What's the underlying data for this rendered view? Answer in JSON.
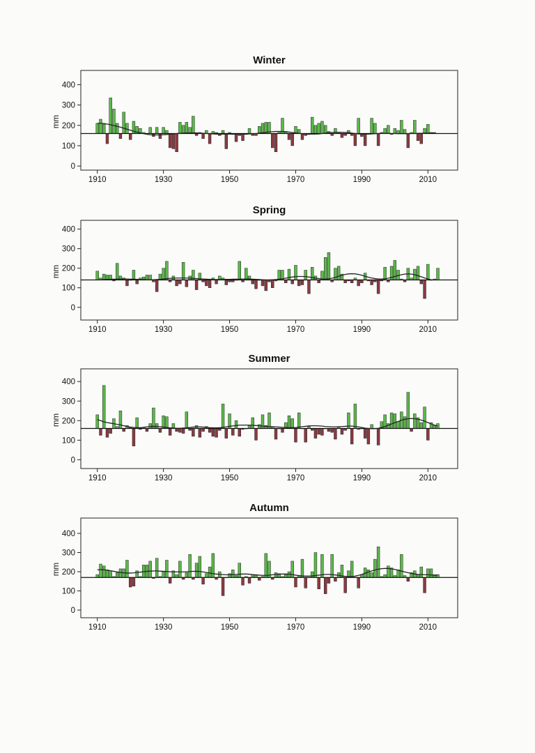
{
  "page": {
    "background": "#fbfbfa"
  },
  "colors": {
    "above": "#5cb84a",
    "below": "#8b3a40",
    "outline": "#222222",
    "smooth": "#222222"
  },
  "chart_data": [
    {
      "type": "bar",
      "title": "Winter",
      "ylabel": "mm",
      "xlabel": "",
      "ylim": [
        -20,
        470
      ],
      "xlim": [
        1905,
        2019
      ],
      "yticks": [
        0,
        100,
        200,
        300,
        400
      ],
      "xticks": [
        1910,
        1930,
        1950,
        1970,
        1990,
        2010
      ],
      "baseline": 160,
      "start_year": 1910,
      "grid": false,
      "values": [
        210,
        230,
        205,
        110,
        335,
        280,
        210,
        135,
        265,
        210,
        130,
        220,
        195,
        185,
        165,
        160,
        190,
        145,
        190,
        135,
        190,
        175,
        90,
        85,
        70,
        215,
        200,
        215,
        190,
        245,
        150,
        165,
        135,
        175,
        110,
        170,
        165,
        150,
        175,
        85,
        165,
        155,
        120,
        150,
        125,
        155,
        185,
        150,
        150,
        195,
        210,
        215,
        215,
        90,
        70,
        165,
        235,
        170,
        130,
        100,
        195,
        180,
        130,
        150,
        155,
        240,
        200,
        210,
        220,
        200,
        170,
        150,
        185,
        165,
        140,
        150,
        175,
        150,
        100,
        235,
        145,
        100,
        160,
        235,
        210,
        100,
        165,
        185,
        200,
        155,
        185,
        175,
        225,
        180,
        90,
        165,
        225,
        125,
        110,
        185,
        205,
        165,
        165
      ],
      "smooth": [
        210,
        210,
        209,
        206,
        203,
        199,
        195,
        191,
        186,
        181,
        176,
        171,
        167,
        163,
        159,
        156,
        154,
        153,
        153,
        153,
        154,
        155,
        157,
        158,
        160,
        161,
        162,
        163,
        163,
        163,
        163,
        162,
        161,
        160,
        159,
        158,
        157,
        157,
        157,
        157,
        157,
        157,
        157,
        157,
        157,
        157,
        158,
        159,
        160,
        162,
        164,
        166,
        168,
        169,
        170,
        170,
        170,
        169,
        167,
        165,
        163,
        161,
        159,
        158,
        157,
        157,
        157,
        158,
        160,
        162,
        164,
        165,
        166,
        166,
        166,
        165,
        164,
        162,
        160,
        158,
        157,
        157,
        157,
        158,
        159,
        160,
        161,
        161,
        161,
        160,
        160,
        159,
        159,
        159,
        159,
        160,
        160,
        161,
        161,
        162,
        162,
        163,
        163
      ]
    },
    {
      "type": "bar",
      "title": "Spring",
      "ylabel": "mm",
      "xlabel": "",
      "ylim": [
        -65,
        445
      ],
      "xlim": [
        1905,
        2019
      ],
      "yticks": [
        0,
        100,
        200,
        300,
        400
      ],
      "xticks": [
        1910,
        1930,
        1950,
        1970,
        1990,
        2010
      ],
      "baseline": 140,
      "start_year": 1910,
      "grid": false,
      "values": [
        185,
        150,
        170,
        165,
        165,
        135,
        225,
        160,
        150,
        110,
        140,
        190,
        120,
        150,
        155,
        165,
        165,
        130,
        80,
        170,
        200,
        235,
        130,
        160,
        110,
        120,
        230,
        105,
        160,
        190,
        90,
        175,
        130,
        110,
        100,
        150,
        120,
        160,
        150,
        115,
        130,
        130,
        140,
        235,
        130,
        200,
        160,
        120,
        95,
        140,
        110,
        85,
        130,
        100,
        135,
        190,
        190,
        125,
        195,
        120,
        215,
        110,
        115,
        190,
        70,
        205,
        160,
        125,
        185,
        255,
        280,
        130,
        200,
        210,
        170,
        125,
        135,
        125,
        150,
        110,
        125,
        175,
        135,
        115,
        130,
        70,
        135,
        205,
        130,
        210,
        240,
        190,
        145,
        130,
        200,
        150,
        195,
        210,
        120,
        45,
        220,
        140,
        145,
        200
      ],
      "smooth": [
        140,
        141,
        142,
        143,
        143,
        144,
        144,
        145,
        145,
        145,
        144,
        144,
        143,
        142,
        142,
        141,
        141,
        141,
        142,
        143,
        145,
        147,
        148,
        149,
        150,
        150,
        150,
        150,
        149,
        148,
        147,
        146,
        145,
        144,
        143,
        142,
        142,
        142,
        142,
        143,
        143,
        144,
        144,
        144,
        145,
        145,
        145,
        144,
        143,
        142,
        141,
        140,
        140,
        141,
        142,
        144,
        146,
        149,
        152,
        155,
        157,
        158,
        158,
        157,
        155,
        152,
        149,
        147,
        145,
        145,
        146,
        149,
        153,
        159,
        164,
        168,
        171,
        172,
        171,
        168,
        164,
        159,
        154,
        150,
        147,
        145,
        145,
        146,
        149,
        153,
        158,
        163,
        167,
        170,
        171,
        170,
        167,
        162,
        156,
        150,
        145,
        141,
        140,
        140
      ]
    },
    {
      "type": "bar",
      "title": "Summer",
      "ylabel": "mm",
      "xlabel": "",
      "ylim": [
        -45,
        465
      ],
      "xlim": [
        1905,
        2019
      ],
      "yticks": [
        0,
        100,
        200,
        300,
        400
      ],
      "xticks": [
        1910,
        1930,
        1950,
        1970,
        1990,
        2010
      ],
      "baseline": 160,
      "start_year": 1910,
      "grid": false,
      "values": [
        230,
        125,
        380,
        115,
        135,
        210,
        170,
        250,
        145,
        175,
        165,
        70,
        215,
        155,
        165,
        145,
        185,
        265,
        185,
        140,
        225,
        220,
        125,
        185,
        145,
        140,
        135,
        245,
        150,
        120,
        175,
        115,
        145,
        170,
        140,
        120,
        115,
        150,
        285,
        110,
        235,
        125,
        200,
        120,
        155,
        160,
        175,
        215,
        100,
        180,
        230,
        175,
        240,
        170,
        105,
        160,
        140,
        190,
        225,
        210,
        90,
        240,
        160,
        90,
        170,
        150,
        110,
        130,
        125,
        160,
        145,
        140,
        105,
        170,
        130,
        150,
        240,
        80,
        285,
        155,
        160,
        110,
        80,
        180,
        160,
        75,
        195,
        230,
        185,
        240,
        235,
        195,
        245,
        220,
        345,
        145,
        235,
        215,
        190,
        270,
        100,
        190,
        175,
        185
      ],
      "smooth": [
        205,
        200,
        194,
        190,
        187,
        184,
        181,
        178,
        174,
        170,
        167,
        165,
        164,
        164,
        166,
        168,
        170,
        171,
        170,
        169,
        167,
        165,
        163,
        162,
        161,
        161,
        162,
        163,
        165,
        167,
        168,
        168,
        167,
        166,
        164,
        163,
        163,
        164,
        166,
        168,
        171,
        173,
        175,
        177,
        177,
        177,
        177,
        176,
        175,
        174,
        172,
        171,
        170,
        169,
        168,
        167,
        166,
        165,
        164,
        164,
        165,
        167,
        169,
        171,
        173,
        174,
        174,
        173,
        172,
        170,
        169,
        168,
        168,
        169,
        170,
        171,
        172,
        172,
        170,
        168,
        165,
        162,
        160,
        159,
        159,
        161,
        165,
        170,
        176,
        183,
        190,
        196,
        202,
        207,
        210,
        211,
        210,
        207,
        203,
        197,
        190,
        183,
        177,
        173
      ]
    },
    {
      "type": "bar",
      "title": "Autumn",
      "ylabel": "mm",
      "xlabel": "",
      "ylim": [
        -40,
        480
      ],
      "xlim": [
        1905,
        2019
      ],
      "yticks": [
        0,
        100,
        200,
        300,
        400
      ],
      "xticks": [
        1910,
        1930,
        1950,
        1970,
        1990,
        2010
      ],
      "baseline": 170,
      "start_year": 1910,
      "grid": false,
      "values": [
        185,
        240,
        230,
        210,
        205,
        175,
        195,
        215,
        215,
        260,
        120,
        125,
        205,
        175,
        235,
        235,
        255,
        165,
        270,
        175,
        200,
        260,
        140,
        205,
        185,
        255,
        160,
        195,
        290,
        160,
        245,
        280,
        135,
        190,
        225,
        295,
        160,
        200,
        75,
        170,
        190,
        210,
        180,
        245,
        130,
        175,
        140,
        185,
        185,
        155,
        175,
        295,
        255,
        160,
        195,
        190,
        175,
        185,
        200,
        255,
        120,
        180,
        265,
        115,
        170,
        200,
        300,
        110,
        290,
        85,
        140,
        290,
        150,
        195,
        235,
        90,
        205,
        255,
        170,
        115,
        185,
        220,
        210,
        195,
        265,
        330,
        175,
        185,
        230,
        220,
        180,
        210,
        290,
        180,
        150,
        195,
        205,
        185,
        225,
        90,
        215,
        215,
        180,
        185
      ],
      "smooth": [
        210,
        211,
        210,
        208,
        205,
        202,
        199,
        196,
        194,
        193,
        193,
        194,
        196,
        198,
        200,
        202,
        203,
        204,
        204,
        203,
        202,
        201,
        200,
        199,
        199,
        199,
        199,
        200,
        201,
        202,
        202,
        201,
        199,
        196,
        193,
        190,
        188,
        186,
        185,
        184,
        184,
        185,
        186,
        187,
        188,
        188,
        187,
        185,
        183,
        182,
        181,
        181,
        182,
        184,
        186,
        187,
        188,
        188,
        187,
        185,
        182,
        180,
        178,
        177,
        177,
        178,
        180,
        182,
        184,
        186,
        186,
        185,
        183,
        181,
        178,
        176,
        175,
        175,
        177,
        181,
        186,
        192,
        198,
        204,
        209,
        213,
        216,
        217,
        217,
        215,
        212,
        208,
        203,
        199,
        195,
        191,
        188,
        186,
        185,
        184,
        184,
        183,
        183,
        183
      ]
    }
  ]
}
